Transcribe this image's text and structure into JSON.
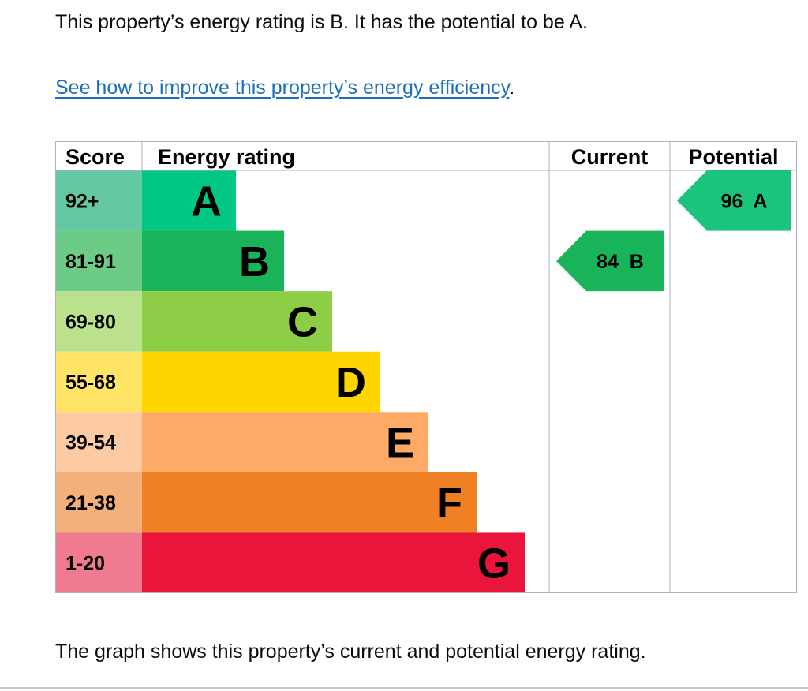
{
  "intro_text": "This property’s energy rating is B. It has the potential to be A.",
  "improve_link": "See how to improve this property’s energy efficiency",
  "improve_link_suffix": ".",
  "caption": "The graph shows this property’s current and potential energy rating.",
  "chart_data": {
    "type": "bar",
    "title": "",
    "headers": {
      "score": "Score",
      "rating": "Energy rating",
      "current": "Current",
      "potential": "Potential"
    },
    "bands": [
      {
        "letter": "A",
        "range": "92+",
        "color": "#00c781",
        "score_color": "#64c8a2"
      },
      {
        "letter": "B",
        "range": "81-91",
        "color": "#19b459",
        "score_color": "#6dcb88"
      },
      {
        "letter": "C",
        "range": "69-80",
        "color": "#8dce46",
        "score_color": "#bae28c"
      },
      {
        "letter": "D",
        "range": "55-68",
        "color": "#ffd500",
        "score_color": "#ffe465"
      },
      {
        "letter": "E",
        "range": "39-54",
        "color": "#fcaa65",
        "score_color": "#fdcaa2"
      },
      {
        "letter": "F",
        "range": "21-38",
        "color": "#ef8023",
        "score_color": "#f4b07b"
      },
      {
        "letter": "G",
        "range": "1-20",
        "color": "#e9153b",
        "score_color": "#f07a90"
      }
    ],
    "current": {
      "score": 84,
      "letter": "B",
      "label": "84  B",
      "color": "#19b459"
    },
    "potential": {
      "score": 96,
      "letter": "A",
      "label": "96  A",
      "color": "#1bc47d"
    }
  }
}
